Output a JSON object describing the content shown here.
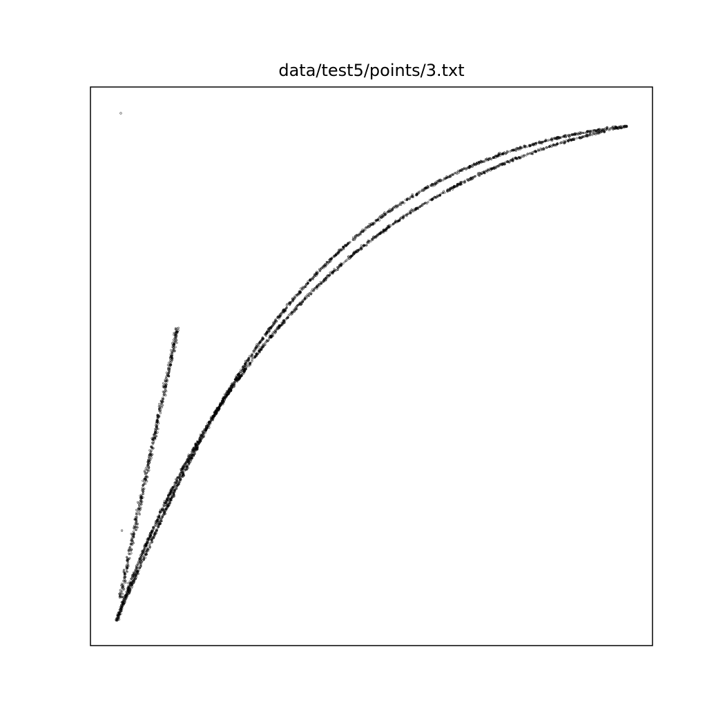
{
  "chart_data": {
    "type": "scatter",
    "title": "data/test5/points/3.txt",
    "xlabel": "",
    "ylabel": "",
    "axes_visible": false,
    "grid": false,
    "marker_color": "#000000",
    "xlim": [
      0,
      100
    ],
    "ylim": [
      0,
      100
    ],
    "series": [
      {
        "segments": [
          {
            "kind": "line",
            "from": [
              5.3,
              8.6
            ],
            "to": [
              15.5,
              57.0
            ],
            "width": 3.2,
            "count": 520,
            "jitter": 0.35
          },
          {
            "kind": "curve",
            "p0": [
              4.6,
              4.5
            ],
            "p1": [
              22.0,
              44.0
            ],
            "p2": [
              39.0,
              86.5
            ],
            "p3": [
              95.5,
              93.0
            ],
            "width": 1.6,
            "count": 1500,
            "jitter": 0.22
          },
          {
            "kind": "curve",
            "p0": [
              4.6,
              4.5
            ],
            "p1": [
              18.0,
              42.0
            ],
            "p2": [
              42.0,
              82.0
            ],
            "p3": [
              95.5,
              93.0
            ],
            "width": 1.6,
            "count": 1500,
            "jitter": 0.22
          }
        ],
        "outliers": [
          [
            5.4,
            95.3
          ],
          [
            5.6,
            20.6
          ],
          [
            5.1,
            4.7
          ],
          [
            72.8,
            88.2
          ]
        ]
      }
    ]
  }
}
